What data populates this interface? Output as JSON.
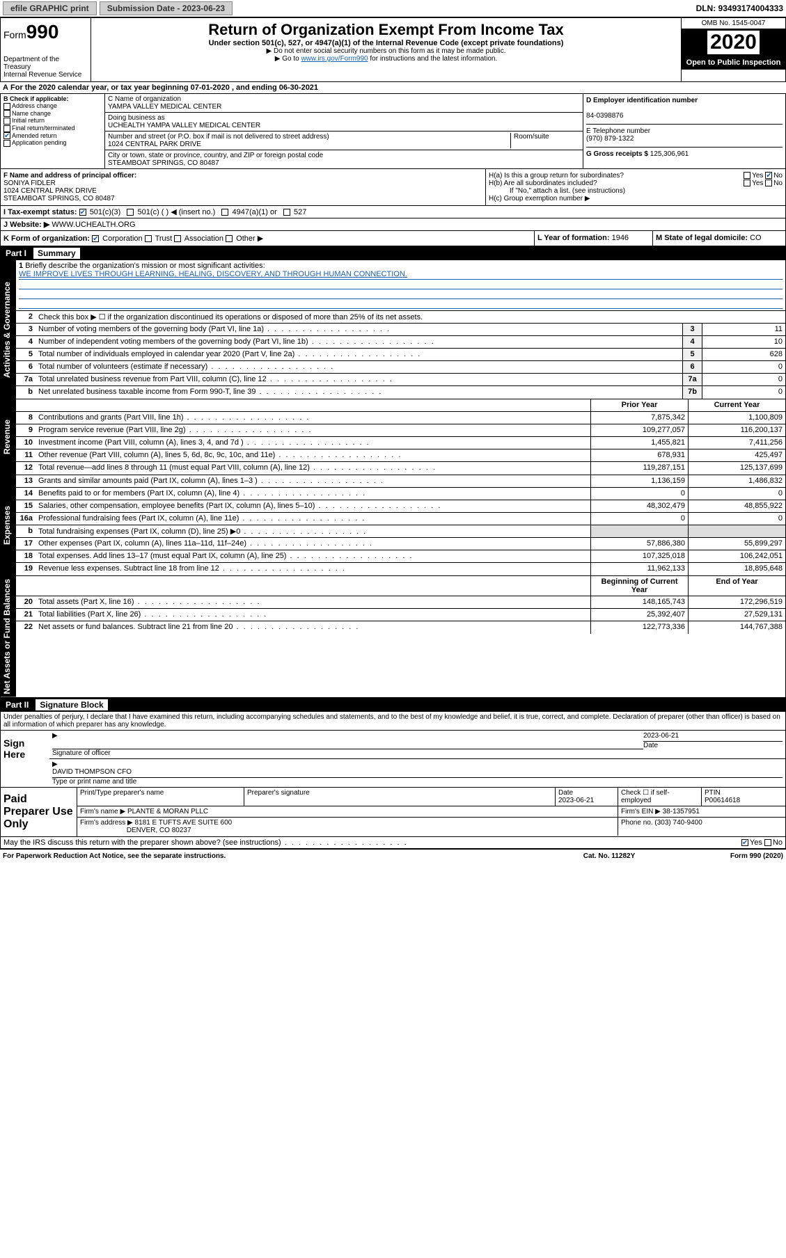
{
  "top": {
    "efile": "efile GRAPHIC print",
    "submission": "Submission Date - 2023-06-23",
    "dln": "DLN: 93493174004333"
  },
  "header": {
    "form_prefix": "Form",
    "form_num": "990",
    "dept": "Department of the Treasury\nInternal Revenue Service",
    "title": "Return of Organization Exempt From Income Tax",
    "sub": "Under section 501(c), 527, or 4947(a)(1) of the Internal Revenue Code (except private foundations)",
    "note1": "▶ Do not enter social security numbers on this form as it may be made public.",
    "note2_a": "▶ Go to ",
    "note2_link": "www.irs.gov/Form990",
    "note2_b": " for instructions and the latest information.",
    "omb": "OMB No. 1545-0047",
    "year": "2020",
    "open": "Open to Public Inspection"
  },
  "line_a": "For the 2020 calendar year, or tax year beginning 07-01-2020   , and ending 06-30-2021",
  "box_b": {
    "label": "B Check if applicable:",
    "items": [
      "Address change",
      "Name change",
      "Initial return",
      "Final return/terminated",
      "Amended return",
      "Application pending"
    ],
    "checked_idx": 4
  },
  "box_c": {
    "c_label": "C Name of organization",
    "c_val": "YAMPA VALLEY MEDICAL CENTER",
    "dba_label": "Doing business as",
    "dba_val": "UCHEALTH YAMPA VALLEY MEDICAL CENTER",
    "addr_label": "Number and street (or P.O. box if mail is not delivered to street address)",
    "addr_val": "1024 CENTRAL PARK DRIVE",
    "room_label": "Room/suite",
    "city_label": "City or town, state or province, country, and ZIP or foreign postal code",
    "city_val": "STEAMBOAT SPRINGS, CO  80487"
  },
  "box_d": {
    "label": "D Employer identification number",
    "val": "84-0398876"
  },
  "box_e": {
    "label": "E Telephone number",
    "val": "(970) 879-1322"
  },
  "box_g": {
    "label": "G Gross receipts $",
    "val": "125,306,961"
  },
  "box_f": {
    "label": "F Name and address of principal officer:",
    "name": "SONIYA FIDLER",
    "addr1": "1024 CENTRAL PARK DRIVE",
    "addr2": "STEAMBOAT SPRINGS, CO  80487"
  },
  "box_h": {
    "ha": "H(a)  Is this a group return for subordinates?",
    "hb": "H(b)  Are all subordinates included?",
    "hb_note": "If \"No,\" attach a list. (see instructions)",
    "hc": "H(c)  Group exemption number ▶"
  },
  "box_i": {
    "label": "I  Tax-exempt status:",
    "opts": [
      "501(c)(3)",
      "501(c) (   ) ◀ (insert no.)",
      "4947(a)(1) or",
      "527"
    ]
  },
  "box_j": {
    "label": "J  Website: ▶",
    "val": "WWW.UCHEALTH.ORG"
  },
  "box_k": {
    "label": "K Form of organization:",
    "opts": [
      "Corporation",
      "Trust",
      "Association",
      "Other ▶"
    ]
  },
  "box_l": {
    "label": "L Year of formation:",
    "val": "1946"
  },
  "box_m": {
    "label": "M State of legal domicile:",
    "val": "CO"
  },
  "part1": {
    "title": "Part I",
    "sub": "Summary"
  },
  "summary": {
    "labels": {
      "side_ag": "Activities & Governance",
      "side_rev": "Revenue",
      "side_exp": "Expenses",
      "side_na": "Net Assets or Fund Balances"
    },
    "q1": "Briefly describe the organization's mission or most significant activities:",
    "mission": "WE IMPROVE LIVES THROUGH LEARNING, HEALING, DISCOVERY, AND THROUGH HUMAN CONNECTION.",
    "q2": "Check this box ▶ ☐  if the organization discontinued its operations or disposed of more than 25% of its net assets.",
    "lines_ag": [
      {
        "n": "3",
        "t": "Number of voting members of the governing body (Part VI, line 1a)",
        "box": "3",
        "v": "11"
      },
      {
        "n": "4",
        "t": "Number of independent voting members of the governing body (Part VI, line 1b)",
        "box": "4",
        "v": "10"
      },
      {
        "n": "5",
        "t": "Total number of individuals employed in calendar year 2020 (Part V, line 2a)",
        "box": "5",
        "v": "628"
      },
      {
        "n": "6",
        "t": "Total number of volunteers (estimate if necessary)",
        "box": "6",
        "v": "0"
      },
      {
        "n": "7a",
        "t": "Total unrelated business revenue from Part VIII, column (C), line 12",
        "box": "7a",
        "v": "0"
      },
      {
        "n": "b",
        "t": "Net unrelated business taxable income from Form 990-T, line 39",
        "box": "7b",
        "v": "0"
      }
    ],
    "hdr_py": "Prior Year",
    "hdr_cy": "Current Year",
    "hdr_boc": "Beginning of Current Year",
    "hdr_eoy": "End of Year",
    "lines_rev": [
      {
        "n": "8",
        "t": "Contributions and grants (Part VIII, line 1h)",
        "py": "7,875,342",
        "cy": "1,100,809"
      },
      {
        "n": "9",
        "t": "Program service revenue (Part VIII, line 2g)",
        "py": "109,277,057",
        "cy": "116,200,137"
      },
      {
        "n": "10",
        "t": "Investment income (Part VIII, column (A), lines 3, 4, and 7d )",
        "py": "1,455,821",
        "cy": "7,411,256"
      },
      {
        "n": "11",
        "t": "Other revenue (Part VIII, column (A), lines 5, 6d, 8c, 9c, 10c, and 11e)",
        "py": "678,931",
        "cy": "425,497"
      },
      {
        "n": "12",
        "t": "Total revenue—add lines 8 through 11 (must equal Part VIII, column (A), line 12)",
        "py": "119,287,151",
        "cy": "125,137,699"
      }
    ],
    "lines_exp": [
      {
        "n": "13",
        "t": "Grants and similar amounts paid (Part IX, column (A), lines 1–3 )",
        "py": "1,136,159",
        "cy": "1,486,832"
      },
      {
        "n": "14",
        "t": "Benefits paid to or for members (Part IX, column (A), line 4)",
        "py": "0",
        "cy": "0"
      },
      {
        "n": "15",
        "t": "Salaries, other compensation, employee benefits (Part IX, column (A), lines 5–10)",
        "py": "48,302,479",
        "cy": "48,855,922"
      },
      {
        "n": "16a",
        "t": "Professional fundraising fees (Part IX, column (A), line 11e)",
        "py": "0",
        "cy": "0"
      },
      {
        "n": "b",
        "t": "Total fundraising expenses (Part IX, column (D), line 25) ▶0",
        "py": "",
        "cy": "",
        "shaded": true
      },
      {
        "n": "17",
        "t": "Other expenses (Part IX, column (A), lines 11a–11d, 11f–24e)",
        "py": "57,886,380",
        "cy": "55,899,297"
      },
      {
        "n": "18",
        "t": "Total expenses. Add lines 13–17 (must equal Part IX, column (A), line 25)",
        "py": "107,325,018",
        "cy": "106,242,051"
      },
      {
        "n": "19",
        "t": "Revenue less expenses. Subtract line 18 from line 12",
        "py": "11,962,133",
        "cy": "18,895,648"
      }
    ],
    "lines_na": [
      {
        "n": "20",
        "t": "Total assets (Part X, line 16)",
        "py": "148,165,743",
        "cy": "172,296,519"
      },
      {
        "n": "21",
        "t": "Total liabilities (Part X, line 26)",
        "py": "25,392,407",
        "cy": "27,529,131"
      },
      {
        "n": "22",
        "t": "Net assets or fund balances. Subtract line 21 from line 20",
        "py": "122,773,336",
        "cy": "144,767,388"
      }
    ]
  },
  "part2": {
    "title": "Part II",
    "sub": "Signature Block"
  },
  "sig": {
    "penalty": "Under penalties of perjury, I declare that I have examined this return, including accompanying schedules and statements, and to the best of my knowledge and belief, it is true, correct, and complete. Declaration of preparer (other than officer) is based on all information of which preparer has any knowledge.",
    "sign_here": "Sign Here",
    "sig_officer": "Signature of officer",
    "date": "2023-06-21",
    "date_label": "Date",
    "name": "DAVID THOMPSON  CFO",
    "name_label": "Type or print name and title"
  },
  "paid": {
    "title": "Paid Preparer Use Only",
    "h1": "Print/Type preparer's name",
    "h2": "Preparer's signature",
    "h3": "Date",
    "h3v": "2023-06-21",
    "h4": "Check ☐ if self-employed",
    "h5": "PTIN",
    "h5v": "P00614618",
    "firm_name_l": "Firm's name    ▶",
    "firm_name": "PLANTE & MORAN PLLC",
    "firm_ein_l": "Firm's EIN ▶",
    "firm_ein": "38-1357951",
    "firm_addr_l": "Firm's address ▶",
    "firm_addr1": "8181 E TUFTS AVE SUITE 600",
    "firm_addr2": "DENVER, CO  80237",
    "phone_l": "Phone no.",
    "phone": "(303) 740-9400",
    "discuss": "May the IRS discuss this return with the preparer shown above? (see instructions)"
  },
  "footer": {
    "left": "For Paperwork Reduction Act Notice, see the separate instructions.",
    "mid": "Cat. No. 11282Y",
    "right": "Form 990 (2020)"
  }
}
